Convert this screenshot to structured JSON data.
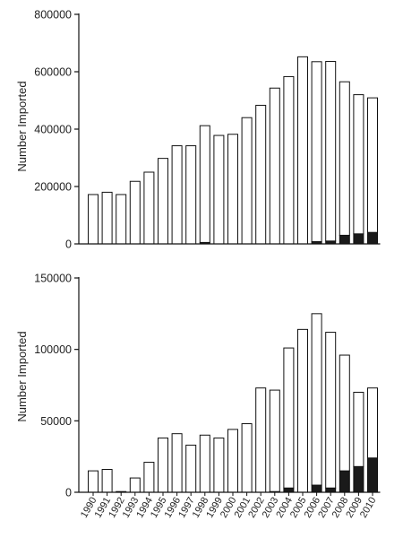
{
  "chart_data": [
    {
      "type": "bar",
      "stacked": true,
      "ylabel": "Number Imported",
      "ylim": [
        0,
        800000
      ],
      "yticks": [
        "0",
        "200000",
        "400000",
        "600000",
        "800000"
      ],
      "categories": [
        "1990",
        "1991",
        "1992",
        "1993",
        "1994",
        "1995",
        "1996",
        "1997",
        "1998",
        "1999",
        "2000",
        "2001",
        "2002",
        "2003",
        "2004",
        "2005",
        "2006",
        "2007",
        "2008",
        "2009",
        "2010"
      ],
      "show_xtick_labels": false,
      "grid": false,
      "series": [
        {
          "fill": "#1a1a1a",
          "values": [
            0,
            0,
            0,
            0,
            0,
            0,
            0,
            0,
            5000,
            0,
            0,
            0,
            0,
            0,
            0,
            0,
            8000,
            10000,
            30000,
            35000,
            40000
          ]
        },
        {
          "fill": "#ffffff",
          "values": [
            172000,
            180000,
            172000,
            218000,
            250000,
            298000,
            342000,
            342000,
            407000,
            378000,
            382000,
            440000,
            483000,
            543000,
            583000,
            652000,
            627000,
            626000,
            535000,
            485000,
            469000
          ]
        }
      ]
    },
    {
      "type": "bar",
      "stacked": true,
      "ylabel": "Number Imported",
      "ylim": [
        0,
        150000
      ],
      "yticks": [
        "0",
        "50000",
        "100000",
        "150000"
      ],
      "categories": [
        "1990",
        "1991",
        "1992",
        "1993",
        "1994",
        "1995",
        "1996",
        "1997",
        "1998",
        "1999",
        "2000",
        "2001",
        "2002",
        "2003",
        "2004",
        "2005",
        "2006",
        "2007",
        "2008",
        "2009",
        "2010"
      ],
      "show_xtick_labels": true,
      "grid": false,
      "series": [
        {
          "fill": "#1a1a1a",
          "values": [
            0,
            0,
            0,
            0,
            0,
            0,
            0,
            0,
            0,
            0,
            0,
            0,
            0,
            500,
            3000,
            0,
            5000,
            3000,
            15000,
            18000,
            24000
          ]
        },
        {
          "fill": "#ffffff",
          "values": [
            15000,
            16000,
            500,
            10000,
            21000,
            38000,
            41000,
            33000,
            40000,
            38000,
            44000,
            48000,
            73000,
            71000,
            98000,
            114000,
            120000,
            109000,
            81000,
            52000,
            49000
          ]
        }
      ]
    }
  ]
}
